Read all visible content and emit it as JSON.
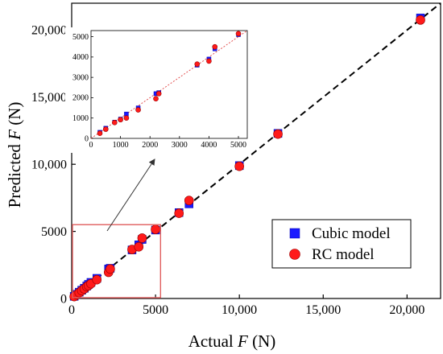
{
  "chart_data": [
    {
      "type": "scatter",
      "xlabel": {
        "prefix": "Actual ",
        "var": "F",
        "suffix": " (N)"
      },
      "ylabel": {
        "prefix": "Predicted ",
        "var": "F",
        "suffix": " (N)"
      },
      "xlim": [
        0,
        22000
      ],
      "ylim": [
        0,
        22000
      ],
      "xticks": [
        {
          "v": 0,
          "label": "0"
        },
        {
          "v": 5000,
          "label": "5000"
        },
        {
          "v": 10000,
          "label": "10,000"
        },
        {
          "v": 15000,
          "label": "15,000"
        },
        {
          "v": 20000,
          "label": "20,000"
        }
      ],
      "yticks": [
        {
          "v": 0,
          "label": "0"
        },
        {
          "v": 5000,
          "label": "5000"
        },
        {
          "v": 10000,
          "label": "10,000"
        },
        {
          "v": 15000,
          "label": "15,000"
        },
        {
          "v": 20000,
          "label": "20,000"
        }
      ],
      "reference_line": "y = x (black dashed)",
      "legend_position": "lower-right",
      "series": [
        {
          "name": "Cubic model",
          "marker": "square",
          "color": "#1a1aff",
          "points": [
            [
              150,
              160
            ],
            [
              300,
              310
            ],
            [
              450,
              470
            ],
            [
              600,
              620
            ],
            [
              750,
              760
            ],
            [
              900,
              930
            ],
            [
              1000,
              1050
            ],
            [
              1150,
              1200
            ],
            [
              1500,
              1500
            ],
            [
              2200,
              2200
            ],
            [
              2300,
              2250
            ],
            [
              3600,
              3620
            ],
            [
              4000,
              4000
            ],
            [
              4200,
              4400
            ],
            [
              5000,
              5100
            ],
            [
              6400,
              6400
            ],
            [
              7000,
              7050
            ],
            [
              10000,
              9900
            ],
            [
              12300,
              12300
            ],
            [
              20800,
              20900
            ]
          ]
        },
        {
          "name": "RC model",
          "marker": "circle",
          "color": "#ff1a1a",
          "points": [
            [
              150,
              140
            ],
            [
              300,
              280
            ],
            [
              450,
              430
            ],
            [
              600,
              580
            ],
            [
              750,
              720
            ],
            [
              900,
              880
            ],
            [
              1000,
              960
            ],
            [
              1150,
              1100
            ],
            [
              1500,
              1400
            ],
            [
              2200,
              1950
            ],
            [
              2300,
              2200
            ],
            [
              3600,
              3650
            ],
            [
              4000,
              3850
            ],
            [
              4200,
              4500
            ],
            [
              5000,
              5150
            ],
            [
              6400,
              6350
            ],
            [
              7000,
              7300
            ],
            [
              10000,
              9850
            ],
            [
              12300,
              12250
            ],
            [
              20800,
              20750
            ]
          ]
        }
      ],
      "highlight_box": {
        "xlim": [
          0,
          5300
        ],
        "ylim": [
          0,
          5500
        ],
        "color": "#e06060"
      }
    },
    {
      "type": "scatter",
      "role": "inset",
      "xlim": [
        0,
        5300
      ],
      "ylim": [
        0,
        5300
      ],
      "xticks": [
        {
          "v": 0,
          "label": "0"
        },
        {
          "v": 1000,
          "label": "1000"
        },
        {
          "v": 2000,
          "label": "2000"
        },
        {
          "v": 3000,
          "label": "3000"
        },
        {
          "v": 4000,
          "label": "4000"
        },
        {
          "v": 5000,
          "label": "5000"
        }
      ],
      "yticks": [
        {
          "v": 0,
          "label": "0"
        },
        {
          "v": 1000,
          "label": "1000"
        },
        {
          "v": 2000,
          "label": "2000"
        },
        {
          "v": 3000,
          "label": "3000"
        },
        {
          "v": 4000,
          "label": "4000"
        },
        {
          "v": 5000,
          "label": "5000"
        }
      ],
      "reference_line": "y = x (red dotted)",
      "series": [
        {
          "name": "Cubic model",
          "marker": "square",
          "color": "#1a1aff",
          "points": [
            [
              300,
              300
            ],
            [
              500,
              500
            ],
            [
              800,
              800
            ],
            [
              1000,
              950
            ],
            [
              1200,
              1200
            ],
            [
              1600,
              1500
            ],
            [
              2200,
              2200
            ],
            [
              2300,
              2250
            ],
            [
              3600,
              3600
            ],
            [
              4000,
              3900
            ],
            [
              4200,
              4400
            ],
            [
              5000,
              5100
            ]
          ]
        },
        {
          "name": "RC model",
          "marker": "circle",
          "color": "#ff1a1a",
          "points": [
            [
              300,
              250
            ],
            [
              500,
              450
            ],
            [
              800,
              780
            ],
            [
              1000,
              920
            ],
            [
              1200,
              1000
            ],
            [
              1600,
              1400
            ],
            [
              2200,
              1950
            ],
            [
              2300,
              2200
            ],
            [
              3600,
              3650
            ],
            [
              4000,
              3800
            ],
            [
              4200,
              4500
            ],
            [
              5000,
              5150
            ]
          ]
        }
      ]
    }
  ]
}
